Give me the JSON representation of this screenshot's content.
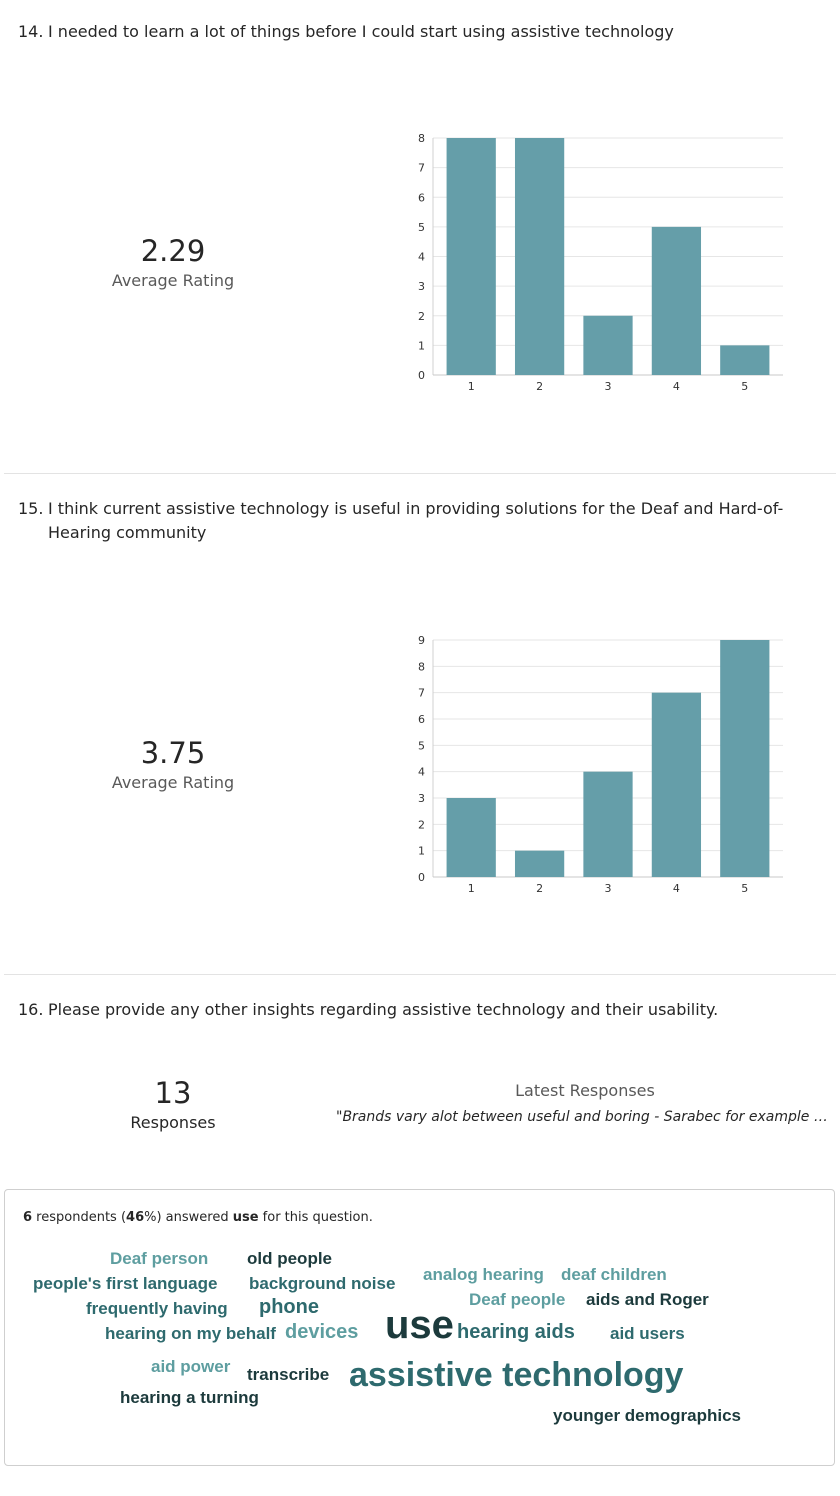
{
  "questions": [
    {
      "number": "14.",
      "text": "I needed to learn a lot of things before I could start using assistive technology",
      "average": "2.29",
      "average_label": "Average Rating"
    },
    {
      "number": "15.",
      "text": "I think current assistive technology is useful in providing solutions for the Deaf and Hard-of-Hearing community",
      "average": "3.75",
      "average_label": "Average Rating"
    },
    {
      "number": "16.",
      "text": "Please provide any other insights regarding assistive technology and their usability.",
      "responses_count": "13",
      "responses_label": "Responses",
      "latest_label": "Latest Responses",
      "latest_quote": "\"Brands vary alot between useful and boring - Sarabec for example bad ...",
      "cloud_summary": {
        "count": "6",
        "pre": " respondents (",
        "percent": "46",
        "mid": "%) answered ",
        "word": "use",
        "post": " for this question."
      },
      "words": [
        {
          "text": "Deaf person",
          "color": "#5e9ea0"
        },
        {
          "text": "old people",
          "color": "#1c3a3c"
        },
        {
          "text": "analog hearing",
          "color": "#5e9ea0"
        },
        {
          "text": "deaf children",
          "color": "#5e9ea0"
        },
        {
          "text": "people's first language",
          "color": "#2e6a6e"
        },
        {
          "text": "background noise",
          "color": "#2e6a6e"
        },
        {
          "text": "Deaf people",
          "color": "#5e9ea0"
        },
        {
          "text": "aids and Roger",
          "color": "#1c3a3c"
        },
        {
          "text": "frequently having",
          "color": "#2e6a6e"
        },
        {
          "text": "phone",
          "color": "#2e6a6e"
        },
        {
          "text": "hearing on my behalf",
          "color": "#2e6a6e"
        },
        {
          "text": "devices",
          "color": "#5e9ea0"
        },
        {
          "text": "use",
          "color": "#1c3a3c"
        },
        {
          "text": "hearing aids",
          "color": "#2e6a6e"
        },
        {
          "text": "aid users",
          "color": "#2e6a6e"
        },
        {
          "text": "aid power",
          "color": "#5e9ea0"
        },
        {
          "text": "transcribe",
          "color": "#1c3a3c"
        },
        {
          "text": "assistive technology",
          "color": "#2e6a6e"
        },
        {
          "text": "hearing a turning",
          "color": "#1c3a3c"
        },
        {
          "text": "younger demographics",
          "color": "#1c3a3c"
        }
      ]
    }
  ],
  "chart_data": [
    {
      "type": "bar",
      "categories": [
        "1",
        "2",
        "3",
        "4",
        "5"
      ],
      "values": [
        8,
        8,
        2,
        5,
        1
      ],
      "ylim": [
        0,
        8
      ],
      "yticks": [
        "0",
        "1",
        "2",
        "3",
        "4",
        "5",
        "6",
        "7",
        "8"
      ],
      "grid": true,
      "bar_color": "#659ea9"
    },
    {
      "type": "bar",
      "categories": [
        "1",
        "2",
        "3",
        "4",
        "5"
      ],
      "values": [
        3,
        1,
        4,
        7,
        9
      ],
      "ylim": [
        0,
        9
      ],
      "yticks": [
        "0",
        "1",
        "2",
        "3",
        "4",
        "5",
        "6",
        "7",
        "8",
        "9"
      ],
      "grid": true,
      "bar_color": "#659ea9"
    }
  ]
}
